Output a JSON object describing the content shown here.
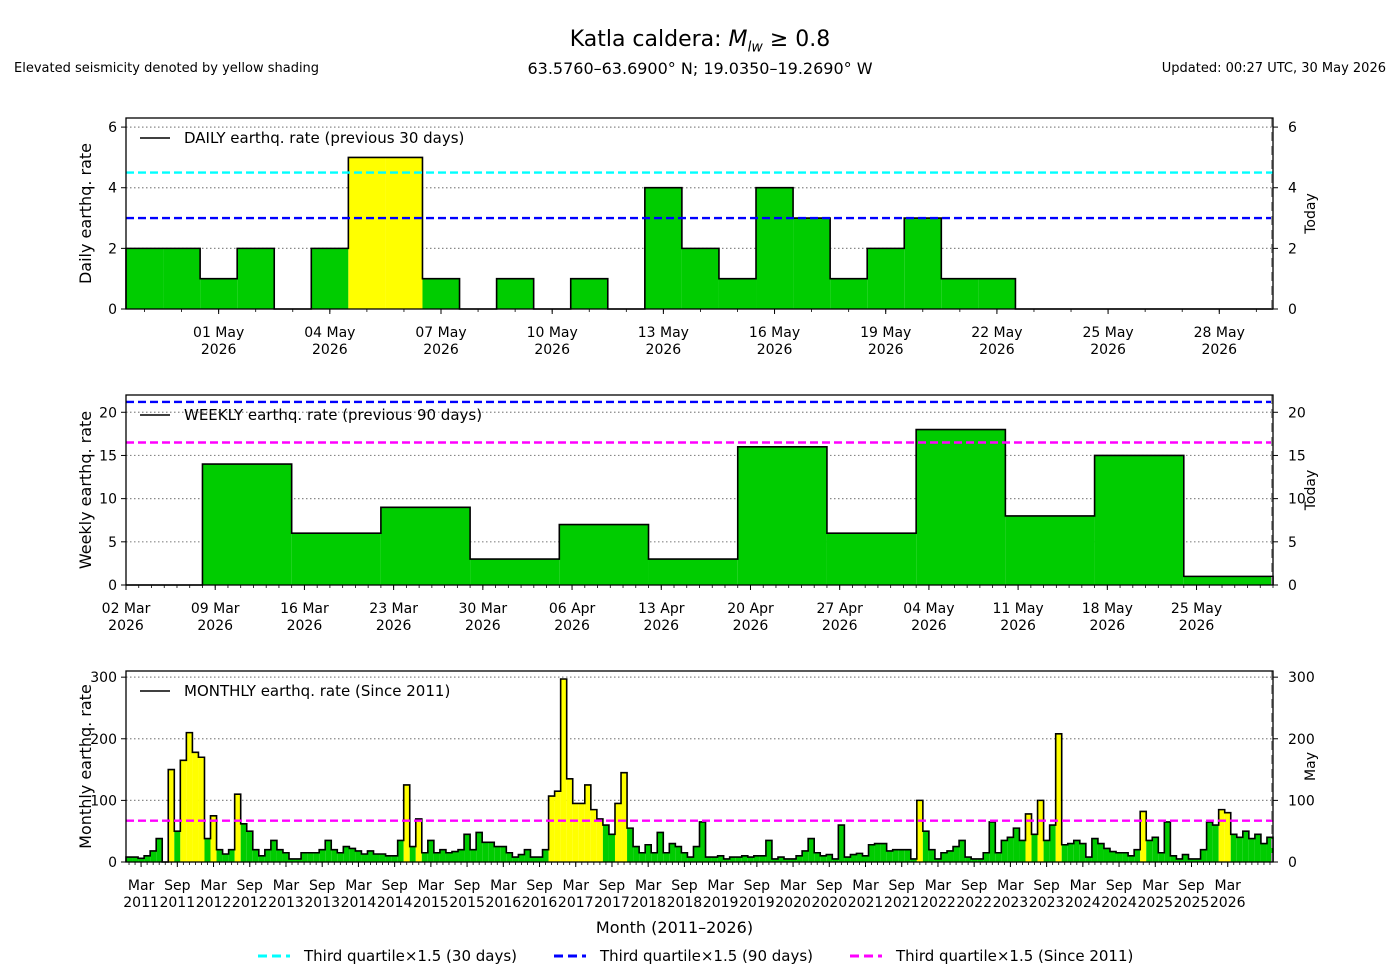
{
  "header": {
    "title_prefix": "Katla caldera: ",
    "title_symbol": "M",
    "title_subscript": "lw",
    "title_suffix": " ≥ 0.8",
    "subtitle": "63.5760–63.6900° N; 19.0350–19.2690° W",
    "note": "Elevated seismicity denoted by yellow shading",
    "updated": "Updated: 00:27 UTC, 30 May 2026"
  },
  "colors": {
    "normal_fill": "#00cc00",
    "elevated_fill": "#ffff00",
    "q30": "#00ffff",
    "q90": "#0000ff",
    "qall": "#ff00ff"
  },
  "legend": [
    {
      "label": "Third quartile×1.5 (30 days)",
      "color": "#00ffff"
    },
    {
      "label": "Third quartile×1.5 (90 days)",
      "color": "#0000ff"
    },
    {
      "label": "Third quartile×1.5 (Since 2011)",
      "color": "#ff00ff"
    }
  ],
  "chart_data": [
    {
      "type": "area",
      "step": true,
      "title": "DAILY earthq. rate (previous 30 days)",
      "ylabel": "Daily earthq. rate",
      "today_label": "Today",
      "ylim": [
        0,
        6.3
      ],
      "yticks": [
        0,
        2,
        4,
        6
      ],
      "grid": true,
      "legend_position": "top-left",
      "x_start": "2026-04-29",
      "x": [
        "2026-04-29",
        "2026-04-30",
        "2026-05-01",
        "2026-05-02",
        "2026-05-03",
        "2026-05-04",
        "2026-05-05",
        "2026-05-06",
        "2026-05-07",
        "2026-05-08",
        "2026-05-09",
        "2026-05-10",
        "2026-05-11",
        "2026-05-12",
        "2026-05-13",
        "2026-05-14",
        "2026-05-15",
        "2026-05-16",
        "2026-05-17",
        "2026-05-18",
        "2026-05-19",
        "2026-05-20",
        "2026-05-21",
        "2026-05-22",
        "2026-05-23",
        "2026-05-24",
        "2026-05-25",
        "2026-05-26",
        "2026-05-27",
        "2026-05-28",
        "2026-05-29"
      ],
      "values": [
        2,
        2,
        1,
        2,
        0,
        2,
        5,
        5,
        1,
        0,
        1,
        0,
        1,
        0,
        4,
        2,
        1,
        4,
        3,
        1,
        2,
        3,
        1,
        1,
        0,
        0,
        0,
        0,
        0,
        0,
        0
      ],
      "elevated": [
        false,
        false,
        false,
        false,
        false,
        false,
        true,
        true,
        false,
        false,
        false,
        false,
        false,
        false,
        false,
        false,
        false,
        false,
        false,
        false,
        false,
        false,
        false,
        false,
        false,
        false,
        false,
        false,
        false,
        false,
        false
      ],
      "xticks": [
        {
          "date": "2026-05-01",
          "label": [
            "01 May",
            "2026"
          ]
        },
        {
          "date": "2026-05-04",
          "label": [
            "04 May",
            "2026"
          ]
        },
        {
          "date": "2026-05-07",
          "label": [
            "07 May",
            "2026"
          ]
        },
        {
          "date": "2026-05-10",
          "label": [
            "10 May",
            "2026"
          ]
        },
        {
          "date": "2026-05-13",
          "label": [
            "13 May",
            "2026"
          ]
        },
        {
          "date": "2026-05-16",
          "label": [
            "16 May",
            "2026"
          ]
        },
        {
          "date": "2026-05-19",
          "label": [
            "19 May",
            "2026"
          ]
        },
        {
          "date": "2026-05-22",
          "label": [
            "22 May",
            "2026"
          ]
        },
        {
          "date": "2026-05-25",
          "label": [
            "25 May",
            "2026"
          ]
        },
        {
          "date": "2026-05-28",
          "label": [
            "28 May",
            "2026"
          ]
        }
      ],
      "thresholds": [
        {
          "value": 4.5,
          "color": "#00ffff",
          "name": "Third quartile×1.5 (30 days)"
        },
        {
          "value": 3.0,
          "color": "#0000ff",
          "name": "Third quartile×1.5 (90 days)"
        }
      ]
    },
    {
      "type": "area",
      "step": true,
      "title": "WEEKLY earthq. rate (previous 90 days)",
      "ylabel": "Weekly earthq. rate",
      "today_label": "Today",
      "ylim": [
        0,
        22
      ],
      "yticks": [
        0,
        5,
        10,
        15,
        20
      ],
      "grid": true,
      "legend_position": "top-left",
      "x_range": [
        "2026-03-02",
        "2026-05-31"
      ],
      "bars": [
        {
          "start": "2026-03-08",
          "end": "2026-03-15",
          "value": 14
        },
        {
          "start": "2026-03-15",
          "end": "2026-03-22",
          "value": 6
        },
        {
          "start": "2026-03-22",
          "end": "2026-03-29",
          "value": 9
        },
        {
          "start": "2026-03-29",
          "end": "2026-04-05",
          "value": 3
        },
        {
          "start": "2026-04-05",
          "end": "2026-04-12",
          "value": 7
        },
        {
          "start": "2026-04-12",
          "end": "2026-04-19",
          "value": 3
        },
        {
          "start": "2026-04-19",
          "end": "2026-04-26",
          "value": 16
        },
        {
          "start": "2026-04-26",
          "end": "2026-05-03",
          "value": 6
        },
        {
          "start": "2026-05-03",
          "end": "2026-05-10",
          "value": 18
        },
        {
          "start": "2026-05-10",
          "end": "2026-05-17",
          "value": 8
        },
        {
          "start": "2026-05-17",
          "end": "2026-05-24",
          "value": 15
        },
        {
          "start": "2026-05-24",
          "end": "2026-05-31",
          "value": 1
        }
      ],
      "xticks": [
        {
          "date": "2026-03-02",
          "label": [
            "02 Mar",
            "2026"
          ]
        },
        {
          "date": "2026-03-09",
          "label": [
            "09 Mar",
            "2026"
          ]
        },
        {
          "date": "2026-03-16",
          "label": [
            "16 Mar",
            "2026"
          ]
        },
        {
          "date": "2026-03-23",
          "label": [
            "23 Mar",
            "2026"
          ]
        },
        {
          "date": "2026-03-30",
          "label": [
            "30 Mar",
            "2026"
          ]
        },
        {
          "date": "2026-04-06",
          "label": [
            "06 Apr",
            "2026"
          ]
        },
        {
          "date": "2026-04-13",
          "label": [
            "13 Apr",
            "2026"
          ]
        },
        {
          "date": "2026-04-20",
          "label": [
            "20 Apr",
            "2026"
          ]
        },
        {
          "date": "2026-04-27",
          "label": [
            "27 Apr",
            "2026"
          ]
        },
        {
          "date": "2026-05-04",
          "label": [
            "04 May",
            "2026"
          ]
        },
        {
          "date": "2026-05-11",
          "label": [
            "11 May",
            "2026"
          ]
        },
        {
          "date": "2026-05-18",
          "label": [
            "18 May",
            "2026"
          ]
        },
        {
          "date": "2026-05-25",
          "label": [
            "25 May",
            "2026"
          ]
        }
      ],
      "thresholds": [
        {
          "value": 21.2,
          "color": "#0000ff",
          "name": "Third quartile×1.5 (90 days)"
        },
        {
          "value": 16.5,
          "color": "#ff00ff",
          "name": "Third quartile×1.5 (Since 2011)"
        }
      ]
    },
    {
      "type": "area",
      "step": true,
      "title": "MONTHLY earthq. rate (Since 2011)",
      "ylabel": "Monthly earthq. rate",
      "xlabel": "Month (2011–2026)",
      "today_label": "May",
      "ylim": [
        0,
        310
      ],
      "yticks": [
        0,
        100,
        200,
        300
      ],
      "grid": true,
      "legend_position": "top-left",
      "x_start": "2011-01",
      "values": [
        8,
        8,
        6,
        10,
        18,
        38,
        0,
        150,
        50,
        165,
        210,
        178,
        170,
        38,
        75,
        20,
        13,
        20,
        110,
        62,
        50,
        20,
        10,
        20,
        35,
        20,
        15,
        5,
        5,
        15,
        15,
        15,
        20,
        35,
        20,
        15,
        25,
        22,
        18,
        13,
        18,
        13,
        13,
        10,
        10,
        35,
        125,
        25,
        70,
        15,
        35,
        15,
        20,
        15,
        17,
        20,
        45,
        20,
        48,
        32,
        32,
        25,
        25,
        15,
        8,
        12,
        20,
        8,
        8,
        20,
        107,
        115,
        297,
        135,
        95,
        95,
        125,
        85,
        70,
        60,
        45,
        95,
        145,
        55,
        25,
        15,
        28,
        15,
        48,
        15,
        30,
        25,
        15,
        8,
        25,
        65,
        8,
        8,
        10,
        5,
        8,
        8,
        10,
        8,
        10,
        10,
        35,
        5,
        8,
        5,
        5,
        10,
        18,
        38,
        15,
        10,
        12,
        5,
        60,
        8,
        12,
        14,
        10,
        28,
        30,
        30,
        18,
        20,
        20,
        20,
        5,
        100,
        50,
        20,
        5,
        15,
        18,
        25,
        35,
        8,
        5,
        5,
        15,
        65,
        15,
        35,
        40,
        55,
        35,
        78,
        45,
        100,
        35,
        60,
        208,
        28,
        30,
        35,
        30,
        8,
        38,
        30,
        22,
        17,
        15,
        15,
        10,
        20,
        82,
        35,
        40,
        15,
        65,
        10,
        5,
        12,
        5,
        5,
        20,
        65,
        60,
        85,
        80,
        45,
        40,
        50,
        38,
        45,
        30,
        40
      ],
      "elevated": [
        false,
        false,
        false,
        false,
        false,
        false,
        false,
        true,
        false,
        true,
        true,
        true,
        true,
        false,
        true,
        false,
        false,
        false,
        true,
        false,
        false,
        false,
        false,
        false,
        false,
        false,
        false,
        false,
        false,
        false,
        false,
        false,
        false,
        false,
        false,
        false,
        false,
        false,
        false,
        false,
        false,
        false,
        false,
        false,
        false,
        false,
        true,
        false,
        true,
        false,
        false,
        false,
        false,
        false,
        false,
        false,
        false,
        false,
        false,
        false,
        false,
        false,
        false,
        false,
        false,
        false,
        false,
        false,
        false,
        false,
        true,
        true,
        true,
        true,
        true,
        true,
        true,
        true,
        true,
        false,
        false,
        true,
        true,
        false,
        false,
        false,
        false,
        false,
        false,
        false,
        false,
        false,
        false,
        false,
        false,
        false,
        false,
        false,
        false,
        false,
        false,
        false,
        false,
        false,
        false,
        false,
        false,
        false,
        false,
        false,
        false,
        false,
        false,
        false,
        false,
        false,
        false,
        false,
        false,
        false,
        false,
        false,
        false,
        false,
        false,
        false,
        false,
        false,
        false,
        false,
        false,
        true,
        false,
        false,
        false,
        false,
        false,
        false,
        false,
        false,
        false,
        false,
        false,
        false,
        false,
        false,
        false,
        false,
        false,
        true,
        false,
        true,
        false,
        false,
        true,
        false,
        false,
        false,
        false,
        false,
        false,
        false,
        false,
        false,
        false,
        false,
        false,
        false,
        true,
        false,
        false,
        false,
        false,
        false,
        false,
        false,
        false,
        false,
        false,
        false,
        false,
        true,
        true,
        false,
        false,
        false,
        false,
        false,
        false,
        false
      ],
      "xticks": [
        {
          "month": "2011-03",
          "label": [
            "Mar",
            "2011"
          ]
        },
        {
          "month": "2011-09",
          "label": [
            "Sep",
            "2011"
          ]
        },
        {
          "month": "2012-03",
          "label": [
            "Mar",
            "2012"
          ]
        },
        {
          "month": "2012-09",
          "label": [
            "Sep",
            "2012"
          ]
        },
        {
          "month": "2013-03",
          "label": [
            "Mar",
            "2013"
          ]
        },
        {
          "month": "2013-09",
          "label": [
            "Sep",
            "2013"
          ]
        },
        {
          "month": "2014-03",
          "label": [
            "Mar",
            "2014"
          ]
        },
        {
          "month": "2014-09",
          "label": [
            "Sep",
            "2014"
          ]
        },
        {
          "month": "2015-03",
          "label": [
            "Mar",
            "2015"
          ]
        },
        {
          "month": "2015-09",
          "label": [
            "Sep",
            "2015"
          ]
        },
        {
          "month": "2016-03",
          "label": [
            "Mar",
            "2016"
          ]
        },
        {
          "month": "2016-09",
          "label": [
            "Sep",
            "2016"
          ]
        },
        {
          "month": "2017-03",
          "label": [
            "Mar",
            "2017"
          ]
        },
        {
          "month": "2017-09",
          "label": [
            "Sep",
            "2017"
          ]
        },
        {
          "month": "2018-03",
          "label": [
            "Mar",
            "2018"
          ]
        },
        {
          "month": "2018-09",
          "label": [
            "Sep",
            "2018"
          ]
        },
        {
          "month": "2019-03",
          "label": [
            "Mar",
            "2019"
          ]
        },
        {
          "month": "2019-09",
          "label": [
            "Sep",
            "2019"
          ]
        },
        {
          "month": "2020-03",
          "label": [
            "Mar",
            "2020"
          ]
        },
        {
          "month": "2020-09",
          "label": [
            "Sep",
            "2020"
          ]
        },
        {
          "month": "2021-03",
          "label": [
            "Mar",
            "2021"
          ]
        },
        {
          "month": "2021-09",
          "label": [
            "Sep",
            "2021"
          ]
        },
        {
          "month": "2022-03",
          "label": [
            "Mar",
            "2022"
          ]
        },
        {
          "month": "2022-09",
          "label": [
            "Sep",
            "2022"
          ]
        },
        {
          "month": "2023-03",
          "label": [
            "Mar",
            "2023"
          ]
        },
        {
          "month": "2023-09",
          "label": [
            "Sep",
            "2023"
          ]
        },
        {
          "month": "2024-03",
          "label": [
            "Mar",
            "2024"
          ]
        },
        {
          "month": "2024-09",
          "label": [
            "Sep",
            "2024"
          ]
        },
        {
          "month": "2025-03",
          "label": [
            "Mar",
            "2025"
          ]
        },
        {
          "month": "2025-09",
          "label": [
            "Sep",
            "2025"
          ]
        },
        {
          "month": "2026-03",
          "label": [
            "Mar",
            "2026"
          ]
        }
      ],
      "thresholds": [
        {
          "value": 67,
          "color": "#ff00ff",
          "name": "Third quartile×1.5 (Since 2011)"
        }
      ]
    }
  ]
}
